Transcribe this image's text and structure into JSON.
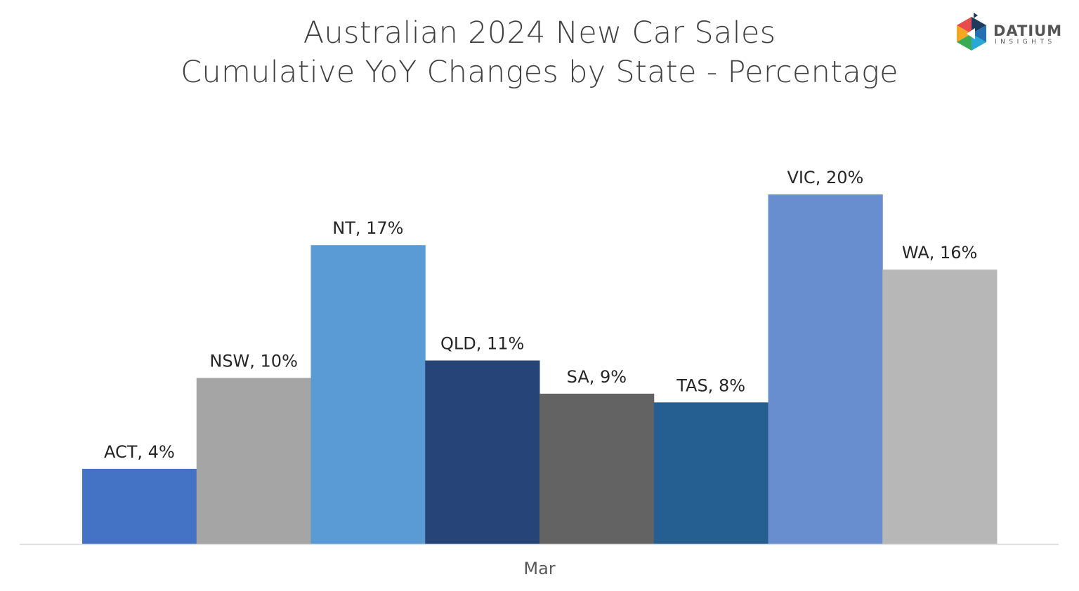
{
  "title_line1": "Australian 2024 New Car Sales",
  "title_line2": "Cumulative YoY Changes by State - Percentage",
  "logo": {
    "name": "DATIUM",
    "sub": "INSIGHTS"
  },
  "chart_data": {
    "type": "bar",
    "title": "Australian 2024 New Car Sales Cumulative YoY Changes by State - Percentage",
    "categories": [
      "Mar"
    ],
    "xlabel": "",
    "ylabel": "",
    "ylim": [
      0,
      22
    ],
    "grid": false,
    "legend": "none",
    "series": [
      {
        "name": "ACT",
        "values": [
          4.3
        ],
        "label": "ACT, 4%",
        "color": "#4472C4"
      },
      {
        "name": "NSW",
        "values": [
          9.5
        ],
        "label": "NSW, 10%",
        "color": "#A5A5A5"
      },
      {
        "name": "NT",
        "values": [
          17.1
        ],
        "label": "NT, 17%",
        "color": "#5B9BD5"
      },
      {
        "name": "QLD",
        "values": [
          10.5
        ],
        "label": "QLD, 11%",
        "color": "#264478"
      },
      {
        "name": "SA",
        "values": [
          8.6
        ],
        "label": "SA, 9%",
        "color": "#636363"
      },
      {
        "name": "TAS",
        "values": [
          8.1
        ],
        "label": "TAS, 8%",
        "color": "#255E91"
      },
      {
        "name": "VIC",
        "values": [
          20.0
        ],
        "label": "VIC, 20%",
        "color": "#698ED0"
      },
      {
        "name": "WA",
        "values": [
          15.7
        ],
        "label": "WA, 16%",
        "color": "#B7B7B7"
      }
    ]
  }
}
